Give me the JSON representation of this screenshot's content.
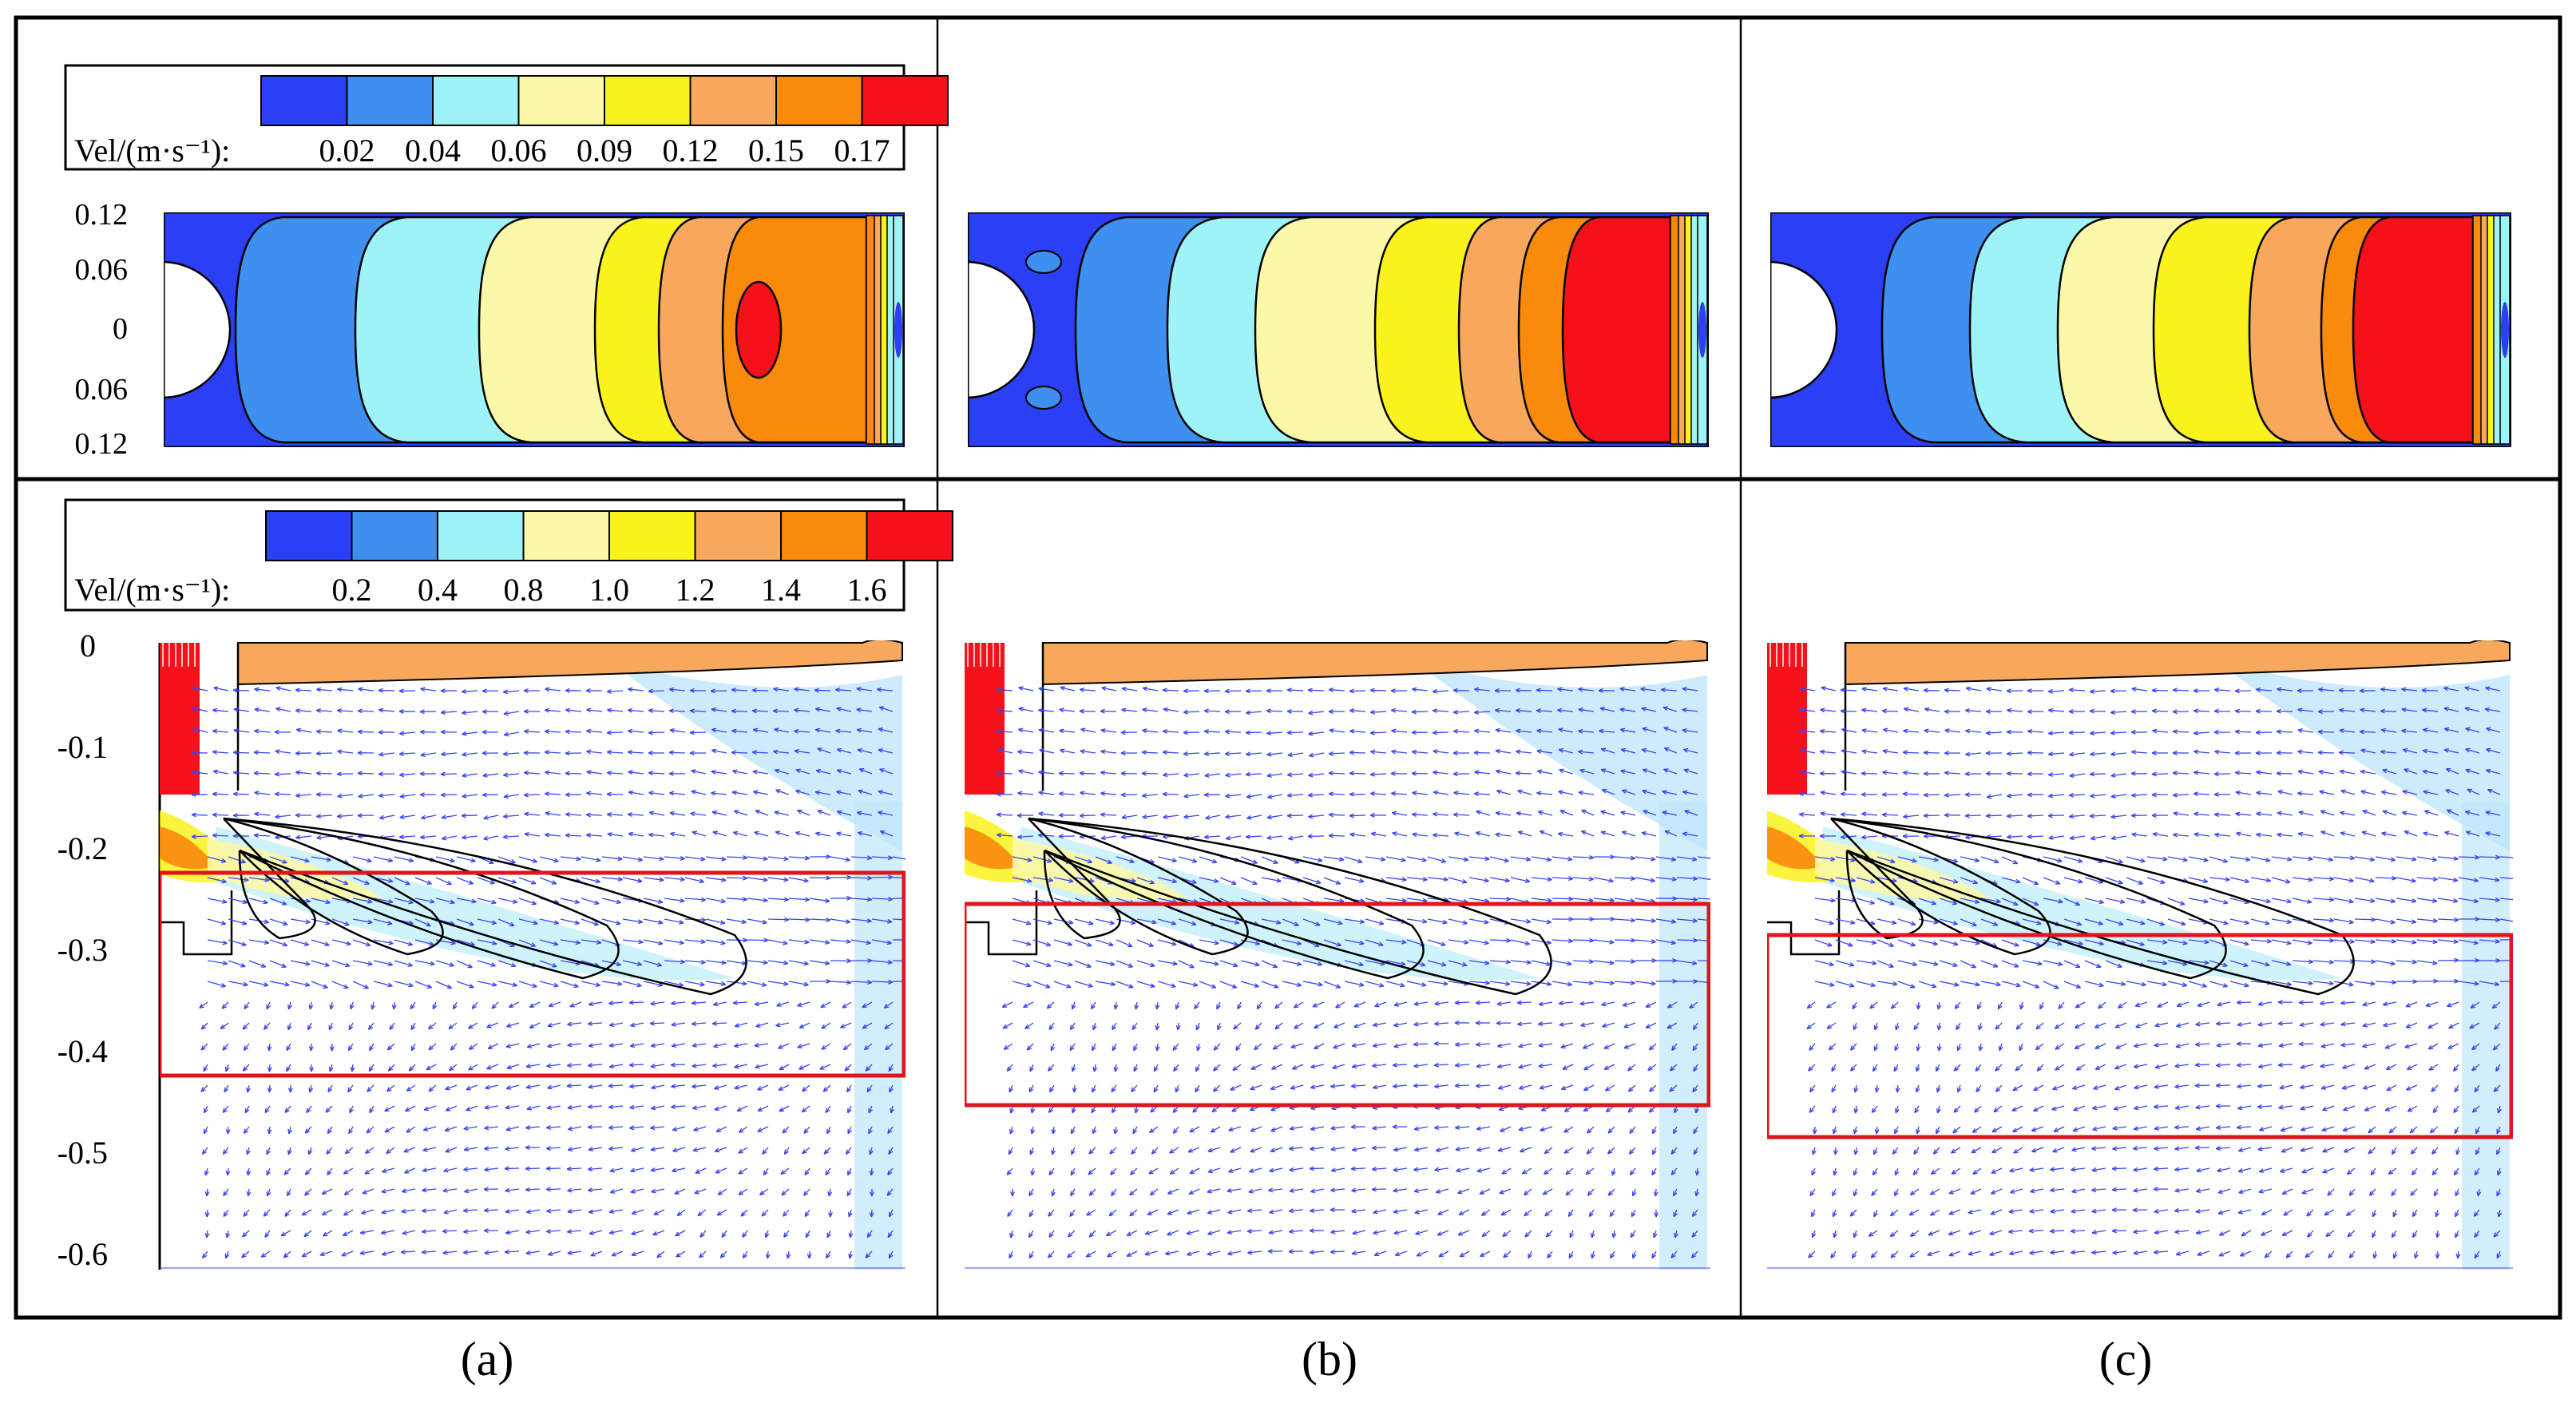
{
  "top_legend": {
    "title": "Vel/(m·s⁻¹):",
    "values": [
      "0.02",
      "0.04",
      "0.06",
      "0.09",
      "0.12",
      "0.15",
      "0.17"
    ],
    "colors": [
      "#2b3ff5",
      "#3f8ff0",
      "#9ef3f7",
      "#fbf8a8",
      "#f9f21c",
      "#f8a85c",
      "#f98a0b",
      "#f5101a"
    ]
  },
  "bottom_legend": {
    "title": "Vel/(m·s⁻¹):",
    "values": [
      "0.2",
      "0.4",
      "0.8",
      "1.0",
      "1.2",
      "1.4",
      "1.6"
    ],
    "colors": [
      "#2b3ff5",
      "#3f8ff0",
      "#9ef3f7",
      "#fbf8a8",
      "#f9f21c",
      "#f8a85c",
      "#f98a0b",
      "#f5101a"
    ]
  },
  "top_axis_ticks": [
    "0.12",
    "0.06",
    "0",
    "0.06",
    "0.12"
  ],
  "bottom_axis_ticks": [
    "0",
    "-0.1",
    "-0.2",
    "-0.3",
    "-0.4",
    "-0.5",
    "-0.6"
  ],
  "panel_labels": [
    "(a)",
    "(b)",
    "(c)"
  ],
  "colors": {
    "vector": "#3a45f0",
    "highlight_box": "#e0141e",
    "free_surface": "#f8a85c",
    "inlet": "#f5101a"
  }
}
